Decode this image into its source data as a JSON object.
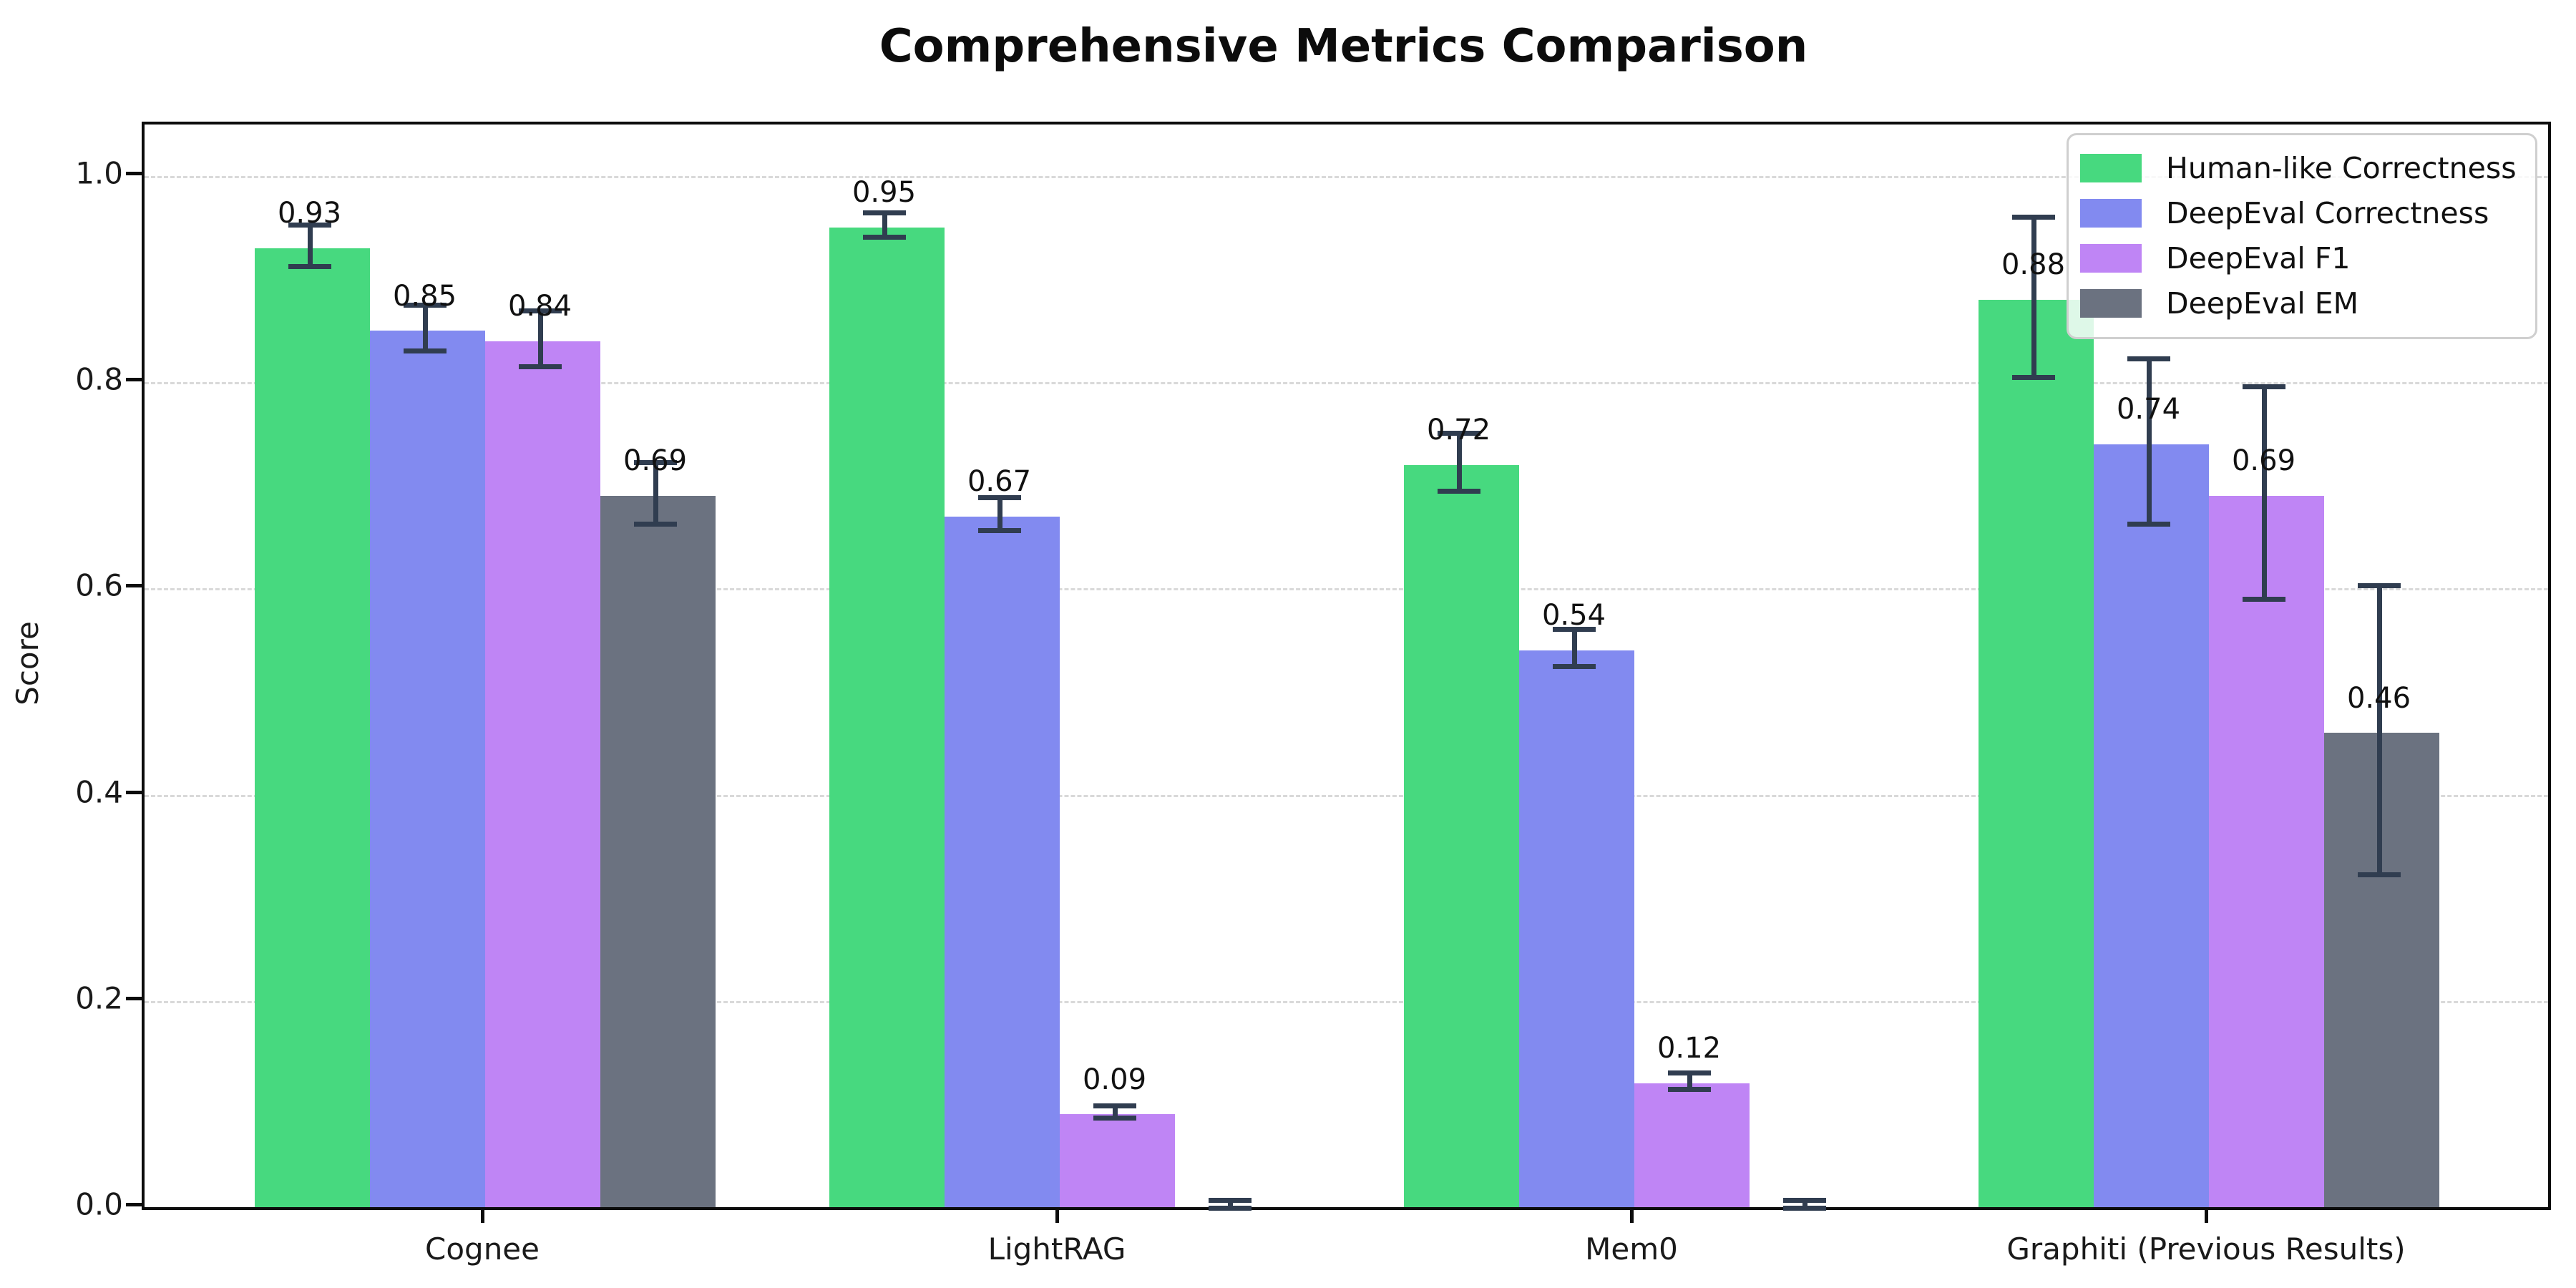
{
  "chart_data": {
    "type": "bar",
    "title": "Comprehensive Metrics Comparison",
    "ylabel": "Score",
    "xlabel": "",
    "categories": [
      "Cognee",
      "LightRAG",
      "Mem0",
      "Graphiti (Previous Results)"
    ],
    "series": [
      {
        "name": "Human-like Correctness",
        "color": "#47d97f",
        "values": [
          0.93,
          0.95,
          0.72,
          0.88
        ],
        "errors": [
          0.02,
          0.012,
          0.028,
          0.078
        ],
        "labels": [
          "0.93",
          "0.95",
          "0.72",
          "0.88"
        ]
      },
      {
        "name": "DeepEval Correctness",
        "color": "#828af0",
        "values": [
          0.85,
          0.67,
          0.54,
          0.74
        ],
        "errors": [
          0.022,
          0.016,
          0.018,
          0.08
        ],
        "labels": [
          "0.85",
          "0.67",
          "0.54",
          "0.74"
        ]
      },
      {
        "name": "DeepEval F1",
        "color": "#bf85f5",
        "values": [
          0.84,
          0.09,
          0.12,
          0.69
        ],
        "errors": [
          0.027,
          0.006,
          0.008,
          0.103
        ],
        "labels": [
          "0.84",
          "0.09",
          "0.12",
          "0.69"
        ]
      },
      {
        "name": "DeepEval EM",
        "color": "#6b7280",
        "values": [
          0.69,
          0.0,
          0.0,
          0.46
        ],
        "errors": [
          0.03,
          0.004,
          0.004,
          0.14
        ],
        "labels": [
          "0.69",
          "",
          "",
          "0.46"
        ]
      }
    ],
    "ylim": [
      0,
      1.05
    ],
    "yticks": [
      "0.0",
      "0.2",
      "0.4",
      "0.6",
      "0.8",
      "1.0"
    ],
    "ytick_values": [
      0.0,
      0.2,
      0.4,
      0.6,
      0.8,
      1.0
    ],
    "grid": "dashed horizontal",
    "legend_position": "upper right",
    "errorbar_color": "#303d50"
  }
}
